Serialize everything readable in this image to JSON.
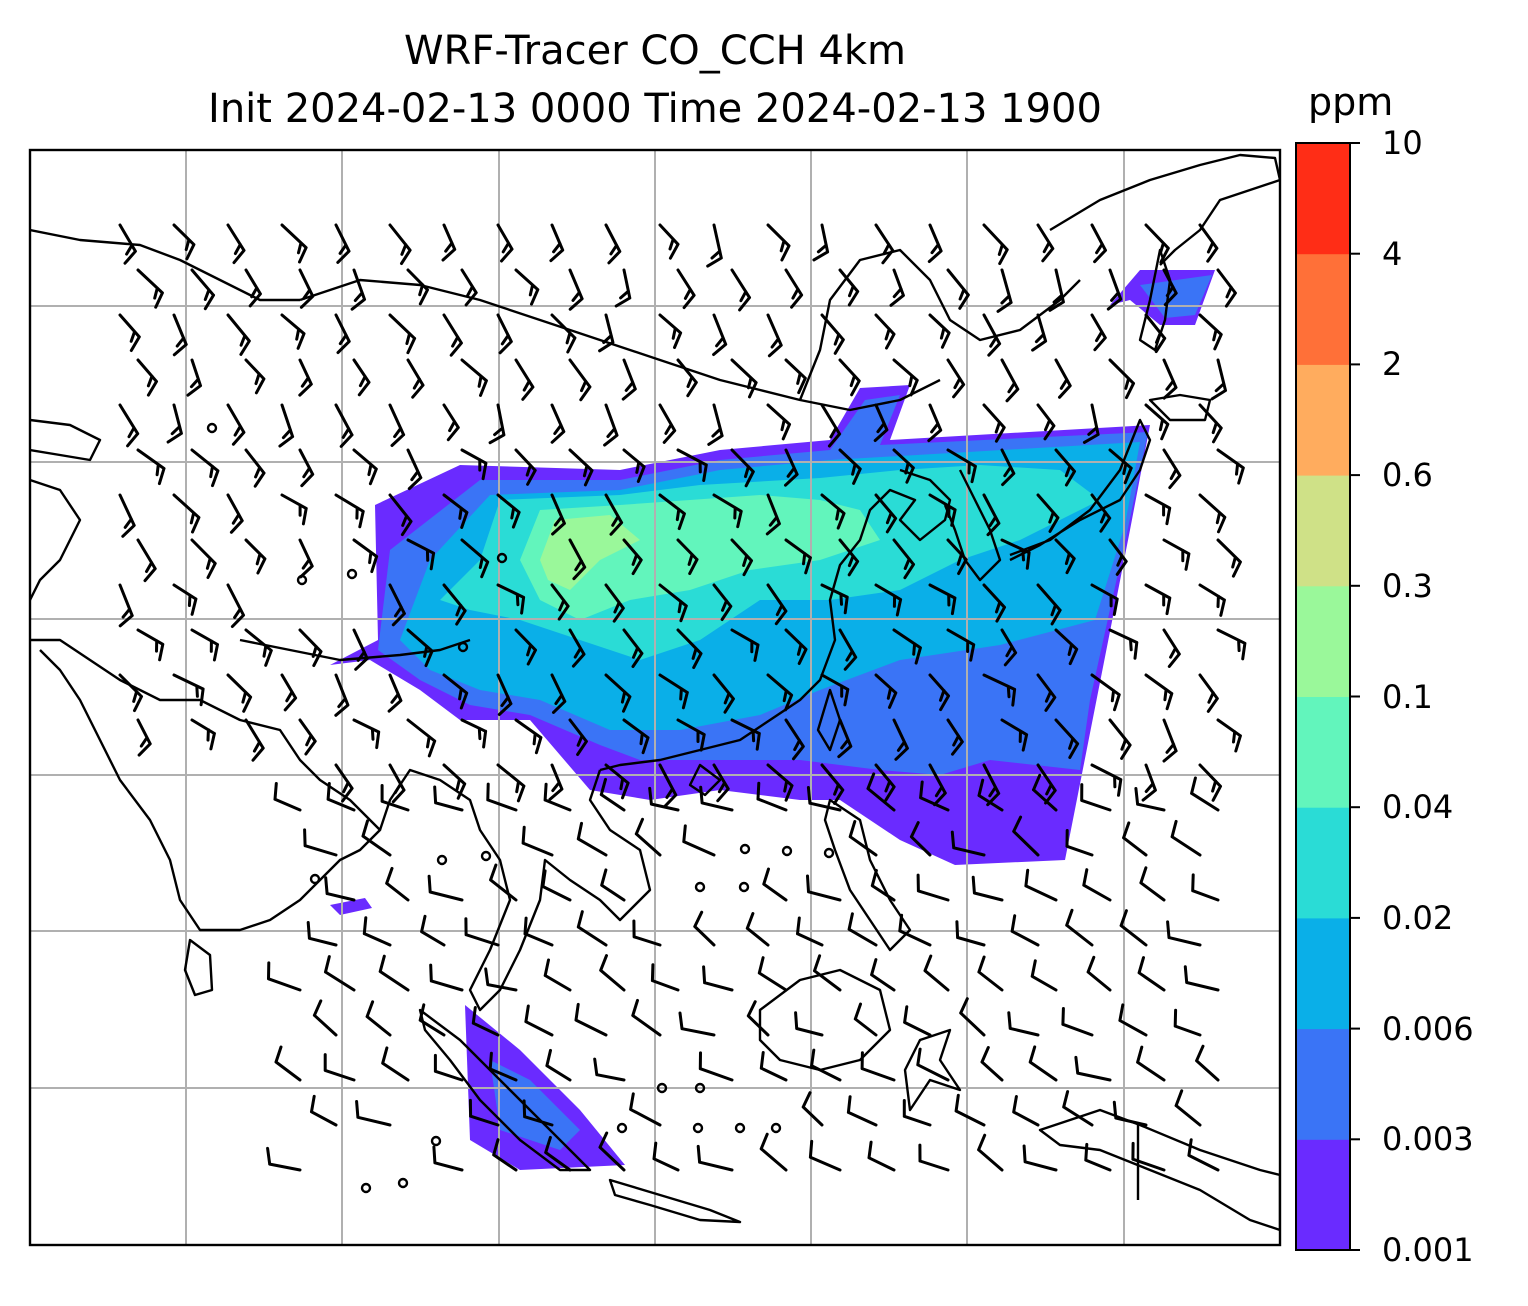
{
  "title": {
    "line1": "WRF-Tracer CO_CCH 4km",
    "line2": "Init 2024-02-13 0000 Time 2024-02-13 1900"
  },
  "colorbar": {
    "unit": "ppm",
    "levels": [
      {
        "label": "0.001",
        "color": "#6a2bff"
      },
      {
        "label": "0.003",
        "color": "#3a74f6"
      },
      {
        "label": "0.006",
        "color": "#0aafe8"
      },
      {
        "label": "0.02",
        "color": "#2adcd6"
      },
      {
        "label": "0.04",
        "color": "#62f5bc"
      },
      {
        "label": "0.1",
        "color": "#9af89a"
      },
      {
        "label": "0.3",
        "color": "#cfe187"
      },
      {
        "label": "0.6",
        "color": "#ffac5e"
      },
      {
        "label": "2",
        "color": "#ff7038"
      },
      {
        "label": "4",
        "color": "#ff2d16"
      },
      {
        "label": "10",
        "color": ""
      }
    ]
  },
  "map": {
    "gridlines": true,
    "gridline_color": "#b0b0b0",
    "coastline_color": "#000000",
    "wind_barb_color": "#000000"
  }
}
